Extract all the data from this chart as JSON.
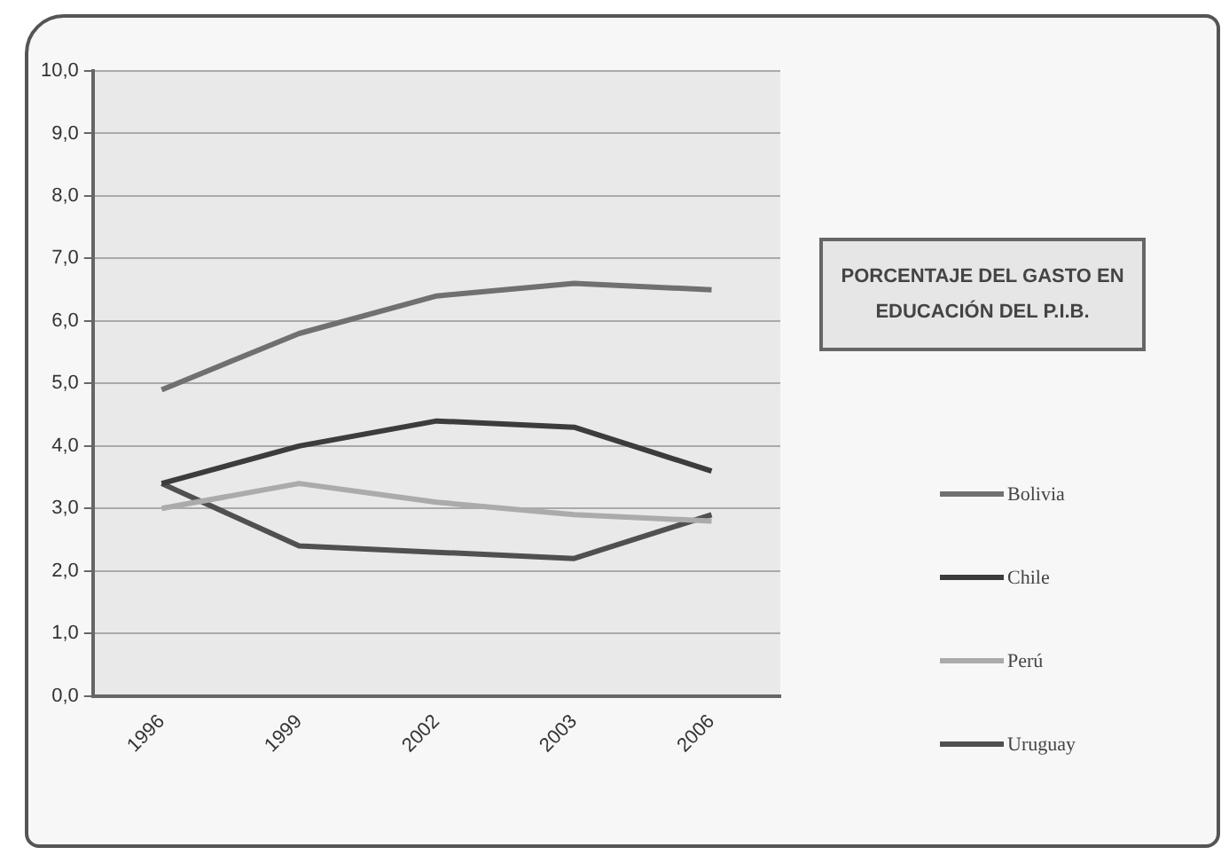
{
  "chart_data": {
    "type": "line",
    "title": "PORCENTAJE DEL GASTO EN EDUCACIÓN DEL P.I.B.",
    "categories": [
      "1996",
      "1999",
      "2002",
      "2003",
      "2006"
    ],
    "series": [
      {
        "name": "Bolivia",
        "color": "#707070",
        "values": [
          4.9,
          5.8,
          6.4,
          6.6,
          6.5
        ]
      },
      {
        "name": "Chile",
        "color": "#3c3c3c",
        "values": [
          3.4,
          4.0,
          4.4,
          4.3,
          3.6
        ]
      },
      {
        "name": "Perú",
        "color": "#ababab",
        "values": [
          3.0,
          3.4,
          3.1,
          2.9,
          2.8
        ]
      },
      {
        "name": "Uruguay",
        "color": "#505050",
        "values": [
          3.4,
          2.4,
          2.3,
          2.2,
          2.9
        ]
      }
    ],
    "ylim": [
      0,
      10
    ],
    "yticks": [
      {
        "value": 0,
        "label": "0,0"
      },
      {
        "value": 1,
        "label": "1,0"
      },
      {
        "value": 2,
        "label": "2,0"
      },
      {
        "value": 3,
        "label": "3,0"
      },
      {
        "value": 4,
        "label": "4,0"
      },
      {
        "value": 5,
        "label": "5,0"
      },
      {
        "value": 6,
        "label": "6,0"
      },
      {
        "value": 7,
        "label": "7,0"
      },
      {
        "value": 8,
        "label": "8,0"
      },
      {
        "value": 9,
        "label": "9,0"
      },
      {
        "value": 10,
        "label": "10,0"
      }
    ],
    "grid": "y",
    "legend": "right",
    "marker": "none",
    "line_style": "solid"
  }
}
